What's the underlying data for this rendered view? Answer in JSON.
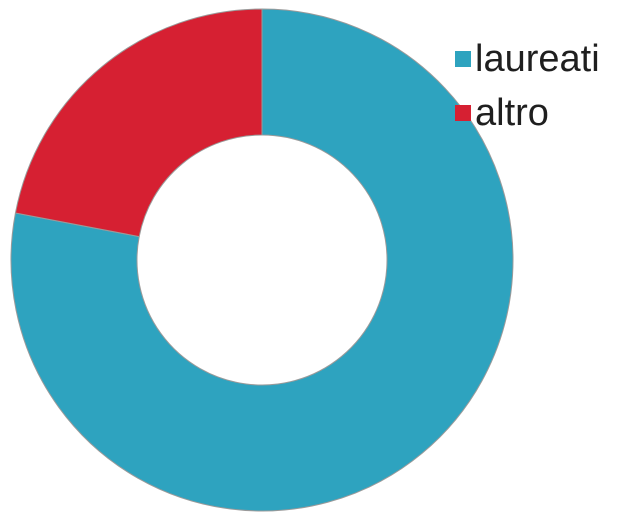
{
  "chart_data": {
    "type": "pie",
    "variant": "donut",
    "title": "",
    "series": [
      {
        "name": "laureati",
        "value": 78,
        "color": "#2ea3bf"
      },
      {
        "name": "altro",
        "value": 22,
        "color": "#d62032"
      }
    ],
    "legend": {
      "position": "top-right",
      "items": [
        "laureati",
        "altro"
      ]
    }
  }
}
